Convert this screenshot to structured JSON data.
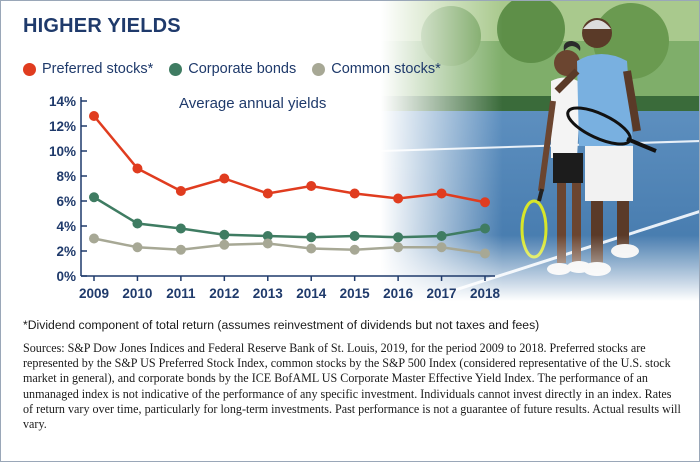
{
  "title": "HIGHER YIELDS",
  "colors": {
    "preferred": "#e03c1f",
    "corporate": "#3f7c62",
    "common": "#a7a895",
    "navy": "#1f3a6b"
  },
  "legend": [
    {
      "label": "Preferred stocks*",
      "color": "#e03c1f"
    },
    {
      "label": "Corporate bonds",
      "color": "#3f7c62"
    },
    {
      "label": "Common stocks*",
      "color": "#a7a895"
    }
  ],
  "chart_data": {
    "type": "line",
    "title": "Average annual yields",
    "xlabel": "",
    "ylabel": "",
    "x": [
      "2009",
      "2010",
      "2011",
      "2012",
      "2013",
      "2014",
      "2015",
      "2016",
      "2017",
      "2018"
    ],
    "ylim": [
      0,
      14
    ],
    "yticks": [
      "0%",
      "2%",
      "4%",
      "6%",
      "8%",
      "10%",
      "12%",
      "14%"
    ],
    "series": [
      {
        "name": "Preferred stocks*",
        "values": [
          12.8,
          8.6,
          6.8,
          7.8,
          6.6,
          7.2,
          6.6,
          6.2,
          6.6,
          5.9
        ]
      },
      {
        "name": "Corporate bonds",
        "values": [
          6.3,
          4.2,
          3.8,
          3.3,
          3.2,
          3.1,
          3.2,
          3.1,
          3.2,
          3.8
        ]
      },
      {
        "name": "Common stocks*",
        "values": [
          3.0,
          2.3,
          2.1,
          2.5,
          2.6,
          2.2,
          2.1,
          2.3,
          2.3,
          1.8
        ]
      }
    ]
  },
  "footnote": "*Dividend component of total return (assumes reinvestment of dividends but not taxes and fees)",
  "sources": "Sources: S&P Dow Jones Indices and Federal Reserve Bank of St. Louis, 2019, for the period 2009 to 2018. Preferred stocks are represented by the S&P US Preferred Stock Index, common stocks by the S&P 500 Index (considered representative of the U.S. stock market in general), and corporate bonds by the ICE BofAML US Corporate Master Effective Yield Index. The performance of an unmanaged index is not indicative of the performance of any specific investment. Individuals cannot invest directly in an index. Rates of return vary over time, particularly for long-term investments. Past performance is not a guarantee of future results. Actual results will vary."
}
